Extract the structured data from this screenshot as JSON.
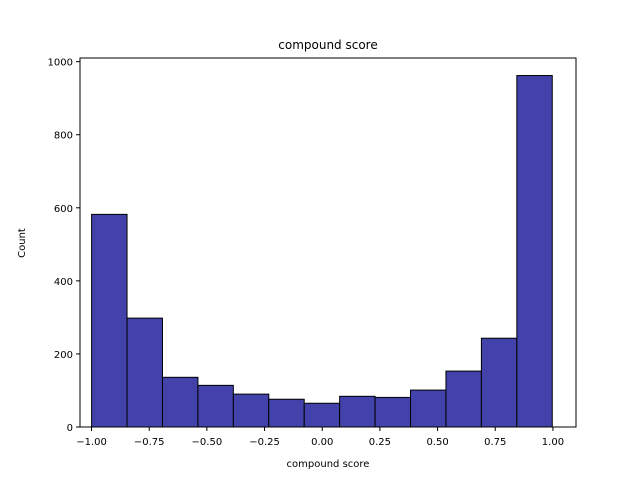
{
  "chart_data": {
    "type": "bar",
    "subtype": "histogram",
    "title": "compound score",
    "xlabel": "compound score",
    "ylabel": "Count",
    "xlim": [
      -1.05,
      1.1
    ],
    "ylim": [
      0,
      1010
    ],
    "xticks": [
      -1.0,
      -0.75,
      -0.5,
      -0.25,
      0.0,
      0.25,
      0.5,
      0.75,
      1.0
    ],
    "xtick_labels": [
      "−1.00",
      "−0.75",
      "−0.50",
      "−0.25",
      "0.00",
      "0.25",
      "0.50",
      "0.75",
      "1.00"
    ],
    "yticks": [
      0,
      200,
      400,
      600,
      800,
      1000
    ],
    "ytick_labels": [
      "0",
      "200",
      "400",
      "600",
      "800",
      "1000"
    ],
    "bin_edges": [
      -0.9997,
      -0.8461,
      -0.6925,
      -0.5389,
      -0.3853,
      -0.2317,
      -0.0781,
      0.0755,
      0.2291,
      0.3827,
      0.5363,
      0.6899,
      0.8435,
      0.9971
    ],
    "values": [
      582,
      298,
      136,
      114,
      90,
      76,
      65,
      84,
      81,
      101,
      153,
      243,
      962
    ],
    "bar_color": "#4242aa",
    "edge_color": "#000000",
    "grid": false
  }
}
